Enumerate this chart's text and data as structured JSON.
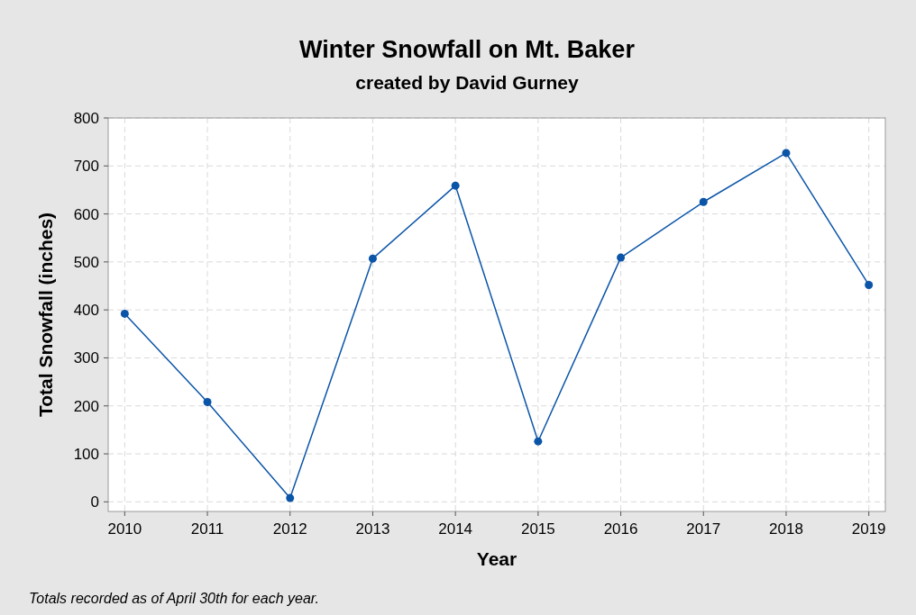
{
  "chart_data": {
    "type": "line",
    "title": "Winter Snowfall on Mt. Baker",
    "subtitle": "created by David Gurney",
    "xlabel": "Year",
    "ylabel": "Total Snowfall (inches)",
    "annotations": [
      "Totals recorded as of April 30th for each year."
    ],
    "x": [
      2010,
      2011,
      2012,
      2013,
      2014,
      2015,
      2016,
      2017,
      2018,
      2019
    ],
    "series": [
      {
        "color": "#0b55a8",
        "values": [
          392,
          208,
          8,
          507,
          659,
          126,
          509,
          625,
          727,
          452
        ]
      }
    ],
    "xlim": [
      2009.8,
      2019.2
    ],
    "xticks": [
      2010,
      2011,
      2012,
      2013,
      2014,
      2015,
      2016,
      2017,
      2018,
      2019
    ],
    "ylim": [
      -20,
      800
    ],
    "yticks": [
      0,
      100,
      200,
      300,
      400,
      500,
      600,
      700,
      800
    ],
    "grid": true,
    "marker": "circle",
    "line_style": "solid"
  }
}
